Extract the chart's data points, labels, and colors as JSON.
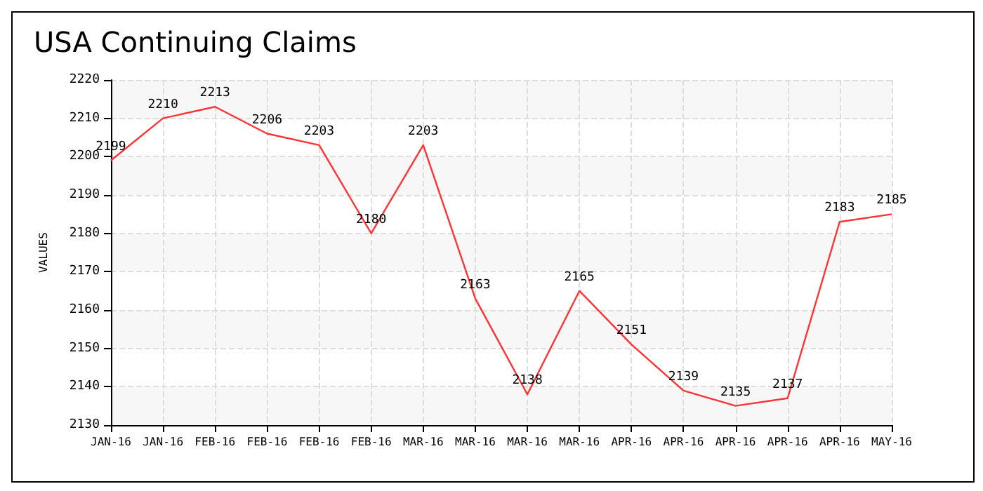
{
  "chart_data": {
    "type": "line",
    "title": "USA Continuing Claims",
    "ylabel": "VALUES",
    "categories": [
      "JAN-16",
      "JAN-16",
      "FEB-16",
      "FEB-16",
      "FEB-16",
      "FEB-16",
      "MAR-16",
      "MAR-16",
      "MAR-16",
      "MAR-16",
      "APR-16",
      "APR-16",
      "APR-16",
      "APR-16",
      "APR-16",
      "MAY-16"
    ],
    "series": [
      {
        "color": "#ff3333",
        "values": [
          2199,
          2210,
          2213,
          2206,
          2203,
          2180,
          2203,
          2163,
          2138,
          2165,
          2151,
          2139,
          2135,
          2137,
          2183,
          2185
        ]
      }
    ],
    "ylim": [
      2130,
      2220
    ],
    "yticks": [
      2130,
      2140,
      2150,
      2160,
      2170,
      2180,
      2190,
      2200,
      2210,
      2220
    ],
    "grid": true,
    "data_labels": true,
    "marker": "none",
    "line_style": "solid"
  }
}
